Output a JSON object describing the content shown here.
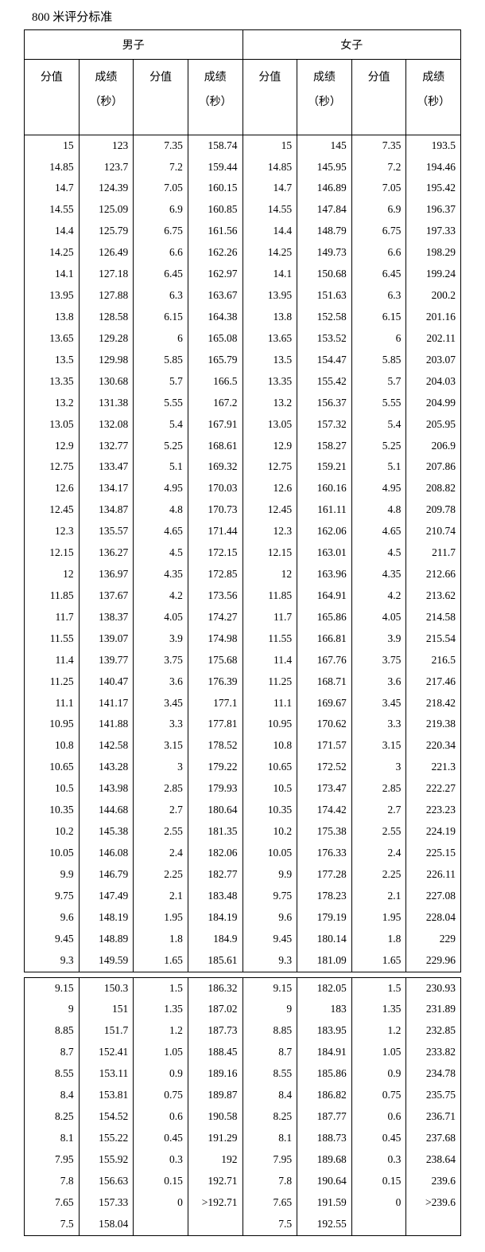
{
  "title": "800 米评分标准",
  "headers": {
    "male": "男子",
    "female": "女子",
    "score": "分值",
    "result": "成绩",
    "sec": "（秒）"
  },
  "block1": [
    [
      "15",
      "123",
      "7.35",
      "158.74",
      "15",
      "145",
      "7.35",
      "193.5"
    ],
    [
      "14.85",
      "123.7",
      "7.2",
      "159.44",
      "14.85",
      "145.95",
      "7.2",
      "194.46"
    ],
    [
      "14.7",
      "124.39",
      "7.05",
      "160.15",
      "14.7",
      "146.89",
      "7.05",
      "195.42"
    ],
    [
      "14.55",
      "125.09",
      "6.9",
      "160.85",
      "14.55",
      "147.84",
      "6.9",
      "196.37"
    ],
    [
      "14.4",
      "125.79",
      "6.75",
      "161.56",
      "14.4",
      "148.79",
      "6.75",
      "197.33"
    ],
    [
      "14.25",
      "126.49",
      "6.6",
      "162.26",
      "14.25",
      "149.73",
      "6.6",
      "198.29"
    ],
    [
      "14.1",
      "127.18",
      "6.45",
      "162.97",
      "14.1",
      "150.68",
      "6.45",
      "199.24"
    ],
    [
      "13.95",
      "127.88",
      "6.3",
      "163.67",
      "13.95",
      "151.63",
      "6.3",
      "200.2"
    ],
    [
      "13.8",
      "128.58",
      "6.15",
      "164.38",
      "13.8",
      "152.58",
      "6.15",
      "201.16"
    ],
    [
      "13.65",
      "129.28",
      "6",
      "165.08",
      "13.65",
      "153.52",
      "6",
      "202.11"
    ],
    [
      "13.5",
      "129.98",
      "5.85",
      "165.79",
      "13.5",
      "154.47",
      "5.85",
      "203.07"
    ],
    [
      "13.35",
      "130.68",
      "5.7",
      "166.5",
      "13.35",
      "155.42",
      "5.7",
      "204.03"
    ],
    [
      "13.2",
      "131.38",
      "5.55",
      "167.2",
      "13.2",
      "156.37",
      "5.55",
      "204.99"
    ],
    [
      "13.05",
      "132.08",
      "5.4",
      "167.91",
      "13.05",
      "157.32",
      "5.4",
      "205.95"
    ],
    [
      "12.9",
      "132.77",
      "5.25",
      "168.61",
      "12.9",
      "158.27",
      "5.25",
      "206.9"
    ],
    [
      "12.75",
      "133.47",
      "5.1",
      "169.32",
      "12.75",
      "159.21",
      "5.1",
      "207.86"
    ],
    [
      "12.6",
      "134.17",
      "4.95",
      "170.03",
      "12.6",
      "160.16",
      "4.95",
      "208.82"
    ],
    [
      "12.45",
      "134.87",
      "4.8",
      "170.73",
      "12.45",
      "161.11",
      "4.8",
      "209.78"
    ],
    [
      "12.3",
      "135.57",
      "4.65",
      "171.44",
      "12.3",
      "162.06",
      "4.65",
      "210.74"
    ],
    [
      "12.15",
      "136.27",
      "4.5",
      "172.15",
      "12.15",
      "163.01",
      "4.5",
      "211.7"
    ],
    [
      "12",
      "136.97",
      "4.35",
      "172.85",
      "12",
      "163.96",
      "4.35",
      "212.66"
    ],
    [
      "11.85",
      "137.67",
      "4.2",
      "173.56",
      "11.85",
      "164.91",
      "4.2",
      "213.62"
    ],
    [
      "11.7",
      "138.37",
      "4.05",
      "174.27",
      "11.7",
      "165.86",
      "4.05",
      "214.58"
    ],
    [
      "11.55",
      "139.07",
      "3.9",
      "174.98",
      "11.55",
      "166.81",
      "3.9",
      "215.54"
    ],
    [
      "11.4",
      "139.77",
      "3.75",
      "175.68",
      "11.4",
      "167.76",
      "3.75",
      "216.5"
    ],
    [
      "11.25",
      "140.47",
      "3.6",
      "176.39",
      "11.25",
      "168.71",
      "3.6",
      "217.46"
    ],
    [
      "11.1",
      "141.17",
      "3.45",
      "177.1",
      "11.1",
      "169.67",
      "3.45",
      "218.42"
    ],
    [
      "10.95",
      "141.88",
      "3.3",
      "177.81",
      "10.95",
      "170.62",
      "3.3",
      "219.38"
    ],
    [
      "10.8",
      "142.58",
      "3.15",
      "178.52",
      "10.8",
      "171.57",
      "3.15",
      "220.34"
    ],
    [
      "10.65",
      "143.28",
      "3",
      "179.22",
      "10.65",
      "172.52",
      "3",
      "221.3"
    ],
    [
      "10.5",
      "143.98",
      "2.85",
      "179.93",
      "10.5",
      "173.47",
      "2.85",
      "222.27"
    ],
    [
      "10.35",
      "144.68",
      "2.7",
      "180.64",
      "10.35",
      "174.42",
      "2.7",
      "223.23"
    ],
    [
      "10.2",
      "145.38",
      "2.55",
      "181.35",
      "10.2",
      "175.38",
      "2.55",
      "224.19"
    ],
    [
      "10.05",
      "146.08",
      "2.4",
      "182.06",
      "10.05",
      "176.33",
      "2.4",
      "225.15"
    ],
    [
      "9.9",
      "146.79",
      "2.25",
      "182.77",
      "9.9",
      "177.28",
      "2.25",
      "226.11"
    ],
    [
      "9.75",
      "147.49",
      "2.1",
      "183.48",
      "9.75",
      "178.23",
      "2.1",
      "227.08"
    ],
    [
      "9.6",
      "148.19",
      "1.95",
      "184.19",
      "9.6",
      "179.19",
      "1.95",
      "228.04"
    ],
    [
      "9.45",
      "148.89",
      "1.8",
      "184.9",
      "9.45",
      "180.14",
      "1.8",
      "229"
    ],
    [
      "9.3",
      "149.59",
      "1.65",
      "185.61",
      "9.3",
      "181.09",
      "1.65",
      "229.96"
    ]
  ],
  "block2": [
    [
      "9.15",
      "150.3",
      "1.5",
      "186.32",
      "9.15",
      "182.05",
      "1.5",
      "230.93"
    ],
    [
      "9",
      "151",
      "1.35",
      "187.02",
      "9",
      "183",
      "1.35",
      "231.89"
    ],
    [
      "8.85",
      "151.7",
      "1.2",
      "187.73",
      "8.85",
      "183.95",
      "1.2",
      "232.85"
    ],
    [
      "8.7",
      "152.41",
      "1.05",
      "188.45",
      "8.7",
      "184.91",
      "1.05",
      "233.82"
    ],
    [
      "8.55",
      "153.11",
      "0.9",
      "189.16",
      "8.55",
      "185.86",
      "0.9",
      "234.78"
    ],
    [
      "8.4",
      "153.81",
      "0.75",
      "189.87",
      "8.4",
      "186.82",
      "0.75",
      "235.75"
    ],
    [
      "8.25",
      "154.52",
      "0.6",
      "190.58",
      "8.25",
      "187.77",
      "0.6",
      "236.71"
    ],
    [
      "8.1",
      "155.22",
      "0.45",
      "191.29",
      "8.1",
      "188.73",
      "0.45",
      "237.68"
    ],
    [
      "7.95",
      "155.92",
      "0.3",
      "192",
      "7.95",
      "189.68",
      "0.3",
      "238.64"
    ],
    [
      "7.8",
      "156.63",
      "0.15",
      "192.71",
      "7.8",
      "190.64",
      "0.15",
      "239.6"
    ],
    [
      "7.65",
      "157.33",
      "0",
      ">192.71",
      "7.65",
      "191.59",
      "0",
      ">239.6"
    ],
    [
      "7.5",
      "158.04",
      "",
      "",
      "7.5",
      "192.55",
      "",
      ""
    ]
  ]
}
